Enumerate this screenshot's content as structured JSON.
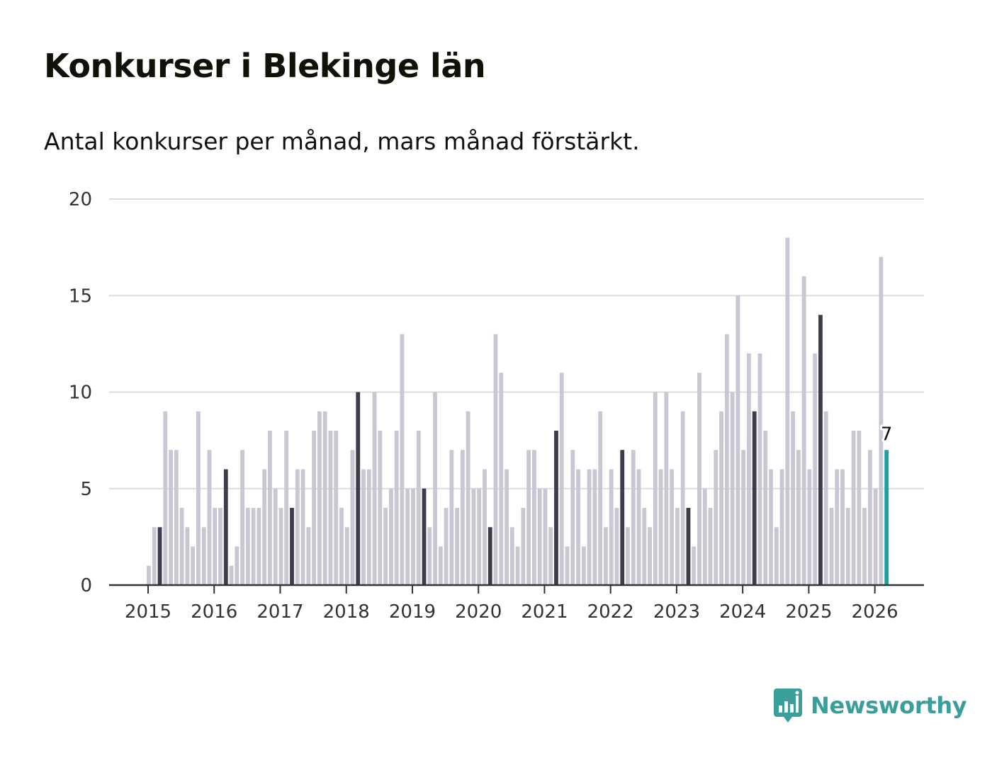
{
  "title": "Konkurser i Blekinge län",
  "subtitle": "Antal konkurser per månad, mars månad förstärkt.",
  "brand": {
    "name": "Newsworthy",
    "color": "#3a9f9a",
    "icon": "bar-chart-bubble-icon"
  },
  "colors": {
    "bar": "#c8c7d3",
    "highlight": "#3c3c4c",
    "latest": "#17a39c",
    "grid": "#dddddd",
    "axis": "#333333"
  },
  "chart_data": {
    "type": "bar",
    "title": "Konkurser i Blekinge län",
    "ylabel": "",
    "xlabel": "",
    "ylim": [
      0,
      20
    ],
    "yticks": [
      0,
      5,
      10,
      15,
      20
    ],
    "xticks": [
      "2015",
      "2016",
      "2017",
      "2018",
      "2019",
      "2020",
      "2021",
      "2022",
      "2023",
      "2024",
      "2025",
      "2026"
    ],
    "start": "2015-01",
    "highlight_month": "mars",
    "latest_label": "7",
    "values": [
      1,
      3,
      3,
      9,
      7,
      7,
      4,
      3,
      2,
      9,
      3,
      7,
      4,
      4,
      6,
      1,
      2,
      7,
      4,
      4,
      4,
      6,
      8,
      5,
      4,
      8,
      4,
      6,
      6,
      3,
      8,
      9,
      9,
      8,
      8,
      4,
      3,
      7,
      10,
      6,
      6,
      10,
      8,
      4,
      5,
      8,
      13,
      5,
      5,
      8,
      5,
      3,
      10,
      2,
      4,
      7,
      4,
      7,
      9,
      5,
      5,
      6,
      3,
      13,
      11,
      6,
      3,
      2,
      4,
      7,
      7,
      5,
      5,
      3,
      8,
      11,
      2,
      7,
      6,
      2,
      6,
      6,
      9,
      3,
      6,
      4,
      7,
      3,
      7,
      6,
      4,
      3,
      10,
      6,
      10,
      6,
      4,
      9,
      4,
      2,
      11,
      5,
      4,
      7,
      9,
      13,
      10,
      15,
      7,
      12,
      9,
      12,
      8,
      6,
      3,
      6,
      18,
      9,
      7,
      16,
      6,
      12,
      14,
      9,
      4,
      6,
      6,
      4,
      8,
      8,
      4,
      7,
      5,
      17,
      7
    ]
  }
}
